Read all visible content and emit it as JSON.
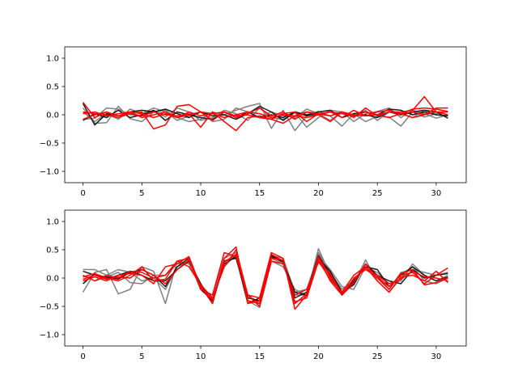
{
  "chart_data": [
    {
      "type": "line",
      "title": "",
      "xlabel": "",
      "ylabel": "",
      "xlim": [
        -1.55,
        32.55
      ],
      "ylim": [
        -1.2,
        1.2
      ],
      "xticks": [
        0,
        5,
        10,
        15,
        20,
        25,
        30
      ],
      "yticks": [
        -1.0,
        -0.5,
        0.0,
        0.5,
        1.0
      ],
      "xtick_labels": [
        "0",
        "5",
        "10",
        "15",
        "20",
        "25",
        "30"
      ],
      "ytick_labels": [
        "−1.0",
        "−0.5",
        "0.0",
        "0.5",
        "1.0"
      ],
      "grid": false,
      "legend": "none",
      "x": [
        0,
        1,
        2,
        3,
        4,
        5,
        6,
        7,
        8,
        9,
        10,
        11,
        12,
        13,
        14,
        15,
        16,
        17,
        18,
        19,
        20,
        21,
        22,
        23,
        24,
        25,
        26,
        27,
        28,
        29,
        30,
        31
      ],
      "series": [
        {
          "color": "#808080",
          "alpha": 1.0,
          "values": [
            0.12,
            -0.15,
            -0.14,
            0.15,
            -0.07,
            -0.12,
            0.05,
            0.08,
            -0.05,
            -0.12,
            -0.08,
            0.05,
            0.0,
            0.08,
            0.15,
            0.2,
            -0.24,
            0.08,
            -0.28,
            -0.02,
            0.06,
            -0.02,
            -0.2,
            0.02,
            -0.12,
            -0.03,
            -0.04,
            -0.2,
            0.05,
            -0.04,
            0.02,
            0.06
          ]
        },
        {
          "color": "#808080",
          "alpha": 1.0,
          "values": [
            -0.08,
            -0.06,
            0.12,
            0.1,
            0.0,
            -0.02,
            0.08,
            -0.04,
            0.12,
            0.05,
            -0.1,
            -0.05,
            0.08,
            0.02,
            -0.1,
            0.12,
            -0.05,
            -0.08,
            0.04,
            -0.22,
            -0.05,
            0.08,
            0.05,
            -0.12,
            0.02,
            0.06,
            0.12,
            -0.05,
            0.08,
            0.02,
            -0.06,
            0.0
          ]
        },
        {
          "color": "#808080",
          "alpha": 1.0,
          "values": [
            0.05,
            -0.12,
            0.02,
            -0.08,
            0.1,
            0.02,
            0.12,
            0.05,
            -0.1,
            -0.02,
            0.05,
            -0.12,
            -0.08,
            0.12,
            0.05,
            -0.05,
            0.05,
            -0.02,
            -0.05,
            0.1,
            0.02,
            -0.1,
            0.05,
            -0.02,
            0.08,
            -0.1,
            0.05,
            0.02,
            -0.05,
            0.08,
            0.0,
            -0.02
          ]
        },
        {
          "color": "#1a1a1a",
          "alpha": 1.0,
          "values": [
            0.2,
            -0.18,
            0.02,
            -0.02,
            0.05,
            0.08,
            0.05,
            0.1,
            0.02,
            -0.05,
            0.05,
            -0.02,
            0.0,
            -0.08,
            0.02,
            0.15,
            0.05,
            -0.1,
            0.05,
            0.0,
            0.05,
            0.08,
            -0.05,
            0.02,
            0.05,
            0.0,
            0.1,
            0.08,
            0.0,
            0.05,
            0.0,
            -0.02
          ]
        },
        {
          "color": "#1a1a1a",
          "alpha": 1.0,
          "values": [
            -0.1,
            0.02,
            -0.05,
            0.08,
            -0.05,
            0.0,
            0.08,
            -0.1,
            0.05,
            0.0,
            -0.05,
            -0.08,
            0.05,
            -0.05,
            0.05,
            -0.05,
            0.0,
            -0.05,
            0.05,
            -0.02,
            0.02,
            -0.02,
            0.05,
            -0.02,
            0.0,
            -0.05,
            0.05,
            0.0,
            0.05,
            0.08,
            0.05,
            -0.06
          ]
        },
        {
          "color": "#ff0000",
          "alpha": 1.0,
          "values": [
            0.22,
            -0.05,
            0.05,
            -0.02,
            0.02,
            0.05,
            -0.25,
            -0.18,
            0.15,
            0.18,
            0.05,
            -0.1,
            0.05,
            -0.05,
            0.02,
            0.12,
            -0.02,
            0.05,
            -0.08,
            0.05,
            0.02,
            -0.02,
            0.05,
            0.0,
            -0.02,
            0.05,
            0.08,
            0.02,
            0.1,
            0.12,
            0.1,
            0.06
          ]
        },
        {
          "color": "#ff0000",
          "alpha": 1.0,
          "values": [
            0.05,
            0.02,
            0.0,
            -0.05,
            0.02,
            -0.02,
            0.05,
            0.0,
            -0.02,
            0.02,
            -0.22,
            0.05,
            -0.12,
            -0.28,
            -0.05,
            -0.02,
            -0.08,
            -0.15,
            -0.02,
            -0.05,
            0.0,
            -0.12,
            0.05,
            -0.05,
            0.12,
            -0.02,
            0.05,
            0.05,
            0.08,
            0.32,
            0.05,
            0.05
          ]
        },
        {
          "color": "#ff0000",
          "alpha": 1.0,
          "values": [
            -0.08,
            0.0,
            0.05,
            -0.02,
            0.05,
            -0.05,
            0.0,
            0.05,
            -0.05,
            0.05,
            -0.02,
            0.02,
            0.05,
            -0.02,
            0.0,
            -0.05,
            -0.08,
            0.02,
            0.05,
            -0.12,
            0.02,
            0.05,
            -0.05,
            0.08,
            -0.02,
            0.0,
            0.05,
            0.02,
            -0.05,
            0.0,
            0.05,
            0.0
          ]
        },
        {
          "color": "#ff0000",
          "alpha": 1.0,
          "values": [
            0.02,
            0.05,
            -0.02,
            0.02,
            0.05,
            0.02,
            -0.05,
            0.02,
            -0.05,
            0.0,
            0.05,
            0.02,
            -0.05,
            0.0,
            0.05,
            0.02,
            -0.05,
            0.0,
            -0.02,
            0.05,
            0.0,
            0.05,
            0.02,
            -0.02,
            0.05,
            0.0,
            -0.05,
            0.02,
            0.05,
            0.0,
            0.12,
            0.12
          ]
        }
      ]
    },
    {
      "type": "line",
      "title": "",
      "xlabel": "",
      "ylabel": "",
      "xlim": [
        -1.55,
        32.55
      ],
      "ylim": [
        -1.2,
        1.2
      ],
      "xticks": [
        0,
        5,
        10,
        15,
        20,
        25,
        30
      ],
      "yticks": [
        -1.0,
        -0.5,
        0.0,
        0.5,
        1.0
      ],
      "xtick_labels": [
        "0",
        "5",
        "10",
        "15",
        "20",
        "25",
        "30"
      ],
      "ytick_labels": [
        "−1.0",
        "−0.5",
        "0.0",
        "0.5",
        "1.0"
      ],
      "grid": false,
      "legend": "none",
      "x": [
        0,
        1,
        2,
        3,
        4,
        5,
        6,
        7,
        8,
        9,
        10,
        11,
        12,
        13,
        14,
        15,
        16,
        17,
        18,
        19,
        20,
        21,
        22,
        23,
        24,
        25,
        26,
        27,
        28,
        29,
        30,
        31
      ],
      "series": [
        {
          "color": "#808080",
          "alpha": 1.0,
          "values": [
            -0.25,
            0.1,
            0.15,
            -0.28,
            -0.2,
            0.2,
            0.12,
            -0.45,
            0.3,
            0.25,
            -0.15,
            -0.35,
            0.2,
            0.42,
            -0.4,
            -0.52,
            0.3,
            0.2,
            -0.2,
            -0.3,
            0.52,
            0.05,
            -0.3,
            -0.1,
            0.32,
            -0.05,
            -0.25,
            0.0,
            0.2,
            -0.05,
            -0.1,
            0.0
          ]
        },
        {
          "color": "#808080",
          "alpha": 1.0,
          "values": [
            0.15,
            0.15,
            0.05,
            0.15,
            0.1,
            -0.05,
            0.0,
            -0.2,
            0.2,
            0.3,
            -0.1,
            -0.4,
            0.3,
            0.4,
            -0.3,
            -0.45,
            0.35,
            0.25,
            -0.3,
            -0.3,
            0.45,
            0.1,
            -0.2,
            -0.05,
            0.25,
            0.05,
            -0.2,
            0.1,
            0.15,
            0.1,
            0.05,
            0.1
          ]
        },
        {
          "color": "#808080",
          "alpha": 1.0,
          "values": [
            0.05,
            -0.05,
            0.02,
            0.1,
            -0.08,
            -0.1,
            0.05,
            0.05,
            0.25,
            0.28,
            -0.2,
            -0.3,
            0.35,
            0.45,
            -0.35,
            -0.4,
            0.4,
            0.35,
            -0.25,
            -0.2,
            0.4,
            0.15,
            -0.15,
            -0.2,
            0.2,
            0.1,
            -0.1,
            -0.05,
            0.25,
            0.05,
            -0.05,
            0.05
          ]
        },
        {
          "color": "#1a1a1a",
          "alpha": 1.0,
          "values": [
            0.12,
            0.05,
            0.02,
            -0.02,
            0.1,
            0.15,
            0.05,
            -0.15,
            0.2,
            0.35,
            -0.2,
            -0.4,
            0.25,
            0.38,
            -0.45,
            -0.35,
            0.4,
            0.3,
            -0.35,
            -0.25,
            0.4,
            0.05,
            -0.3,
            -0.05,
            0.2,
            0.15,
            -0.15,
            0.05,
            0.2,
            0.05,
            -0.05,
            0.02
          ]
        },
        {
          "color": "#1a1a1a",
          "alpha": 1.0,
          "values": [
            -0.1,
            0.08,
            -0.02,
            0.05,
            0.12,
            0.05,
            -0.05,
            -0.05,
            0.15,
            0.3,
            -0.1,
            -0.45,
            0.3,
            0.35,
            -0.35,
            -0.4,
            0.38,
            0.28,
            -0.25,
            -0.3,
            0.35,
            0.12,
            -0.25,
            -0.12,
            0.25,
            0.05,
            -0.05,
            -0.1,
            0.15,
            0.0,
            0.05,
            0.08
          ]
        },
        {
          "color": "#ff0000",
          "alpha": 1.0,
          "values": [
            0.02,
            0.08,
            0.0,
            -0.05,
            0.05,
            0.2,
            -0.05,
            -0.02,
            0.3,
            0.35,
            -0.2,
            -0.3,
            0.45,
            0.38,
            -0.3,
            -0.35,
            0.45,
            0.35,
            -0.55,
            -0.3,
            0.35,
            -0.05,
            -0.3,
            0.0,
            0.15,
            0.02,
            -0.15,
            0.05,
            0.1,
            -0.1,
            0.05,
            0.18
          ]
        },
        {
          "color": "#ff0000",
          "alpha": 1.0,
          "values": [
            -0.05,
            0.02,
            -0.05,
            0.05,
            0.08,
            0.05,
            -0.1,
            0.2,
            0.25,
            0.38,
            -0.15,
            -0.45,
            0.35,
            0.55,
            -0.45,
            -0.4,
            0.42,
            0.3,
            -0.42,
            -0.35,
            0.3,
            -0.02,
            -0.25,
            0.05,
            0.2,
            -0.05,
            -0.25,
            0.02,
            0.05,
            -0.05,
            0.12,
            -0.08
          ]
        },
        {
          "color": "#ff0000",
          "alpha": 1.0,
          "values": [
            0.05,
            -0.05,
            0.05,
            0.0,
            0.12,
            0.1,
            0.0,
            0.05,
            0.3,
            0.2,
            -0.12,
            -0.35,
            0.2,
            0.5,
            -0.3,
            -0.5,
            0.3,
            0.25,
            -0.3,
            -0.2,
            0.28,
            0.08,
            -0.3,
            -0.08,
            0.25,
            0.0,
            -0.2,
            0.08,
            0.15,
            -0.12,
            -0.08,
            0.0
          ]
        },
        {
          "color": "#ff0000",
          "alpha": 1.0,
          "values": [
            -0.02,
            0.05,
            -0.02,
            0.02,
            0.0,
            0.15,
            0.05,
            -0.1,
            0.15,
            0.32,
            -0.18,
            -0.38,
            0.28,
            0.42,
            -0.4,
            -0.45,
            0.35,
            0.32,
            -0.45,
            -0.28,
            0.38,
            0.02,
            -0.28,
            -0.02,
            0.18,
            0.05,
            -0.1,
            -0.02,
            0.12,
            0.02,
            0.0,
            -0.05
          ]
        }
      ]
    }
  ]
}
